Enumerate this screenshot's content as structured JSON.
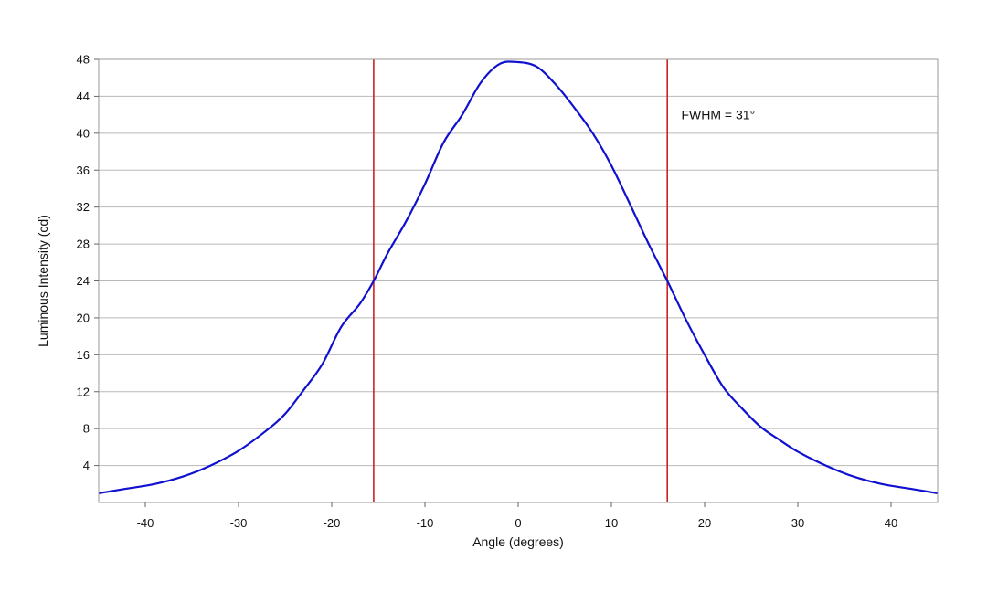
{
  "chart_data": {
    "type": "line",
    "title": "",
    "xlabel": "Angle (degrees)",
    "ylabel": "Luminous Intensity (cd)",
    "xlim": [
      -45,
      45
    ],
    "ylim": [
      0,
      48
    ],
    "xticks": [
      -40,
      -30,
      -20,
      -10,
      0,
      10,
      20,
      30,
      40
    ],
    "yticks": [
      4,
      8,
      12,
      16,
      20,
      24,
      28,
      32,
      36,
      40,
      44,
      48
    ],
    "grid": "horizontal",
    "legend": "none",
    "series": [
      {
        "color": "#1010d0",
        "x": [
          -45,
          -42,
          -39,
          -36,
          -33,
          -30,
          -27,
          -25,
          -23,
          -21,
          -19,
          -17,
          -15.5,
          -14,
          -12,
          -10,
          -8,
          -6,
          -4,
          -2,
          0,
          2,
          4,
          6,
          8,
          10,
          12,
          14,
          16,
          18,
          20,
          22,
          24,
          26,
          28,
          30,
          33,
          36,
          39,
          42,
          45
        ],
        "y": [
          1.0,
          1.5,
          2.0,
          2.8,
          4.0,
          5.6,
          7.8,
          9.6,
          12.2,
          15.0,
          19.0,
          21.5,
          24.0,
          27.0,
          30.5,
          34.5,
          39.0,
          42.0,
          45.5,
          47.5,
          47.7,
          47.2,
          45.3,
          42.8,
          40.0,
          36.5,
          32.3,
          28.0,
          24.0,
          19.8,
          16.0,
          12.5,
          10.2,
          8.2,
          6.8,
          5.5,
          4.0,
          2.8,
          2.0,
          1.5,
          1.0
        ]
      }
    ],
    "vlines": [
      {
        "x": -15.5,
        "color": "#cc2222"
      },
      {
        "x": 16.0,
        "color": "#cc2222"
      }
    ],
    "annotations": [
      {
        "text": "FWHM = 31°",
        "x": 17.5,
        "y": 41.5
      }
    ]
  }
}
